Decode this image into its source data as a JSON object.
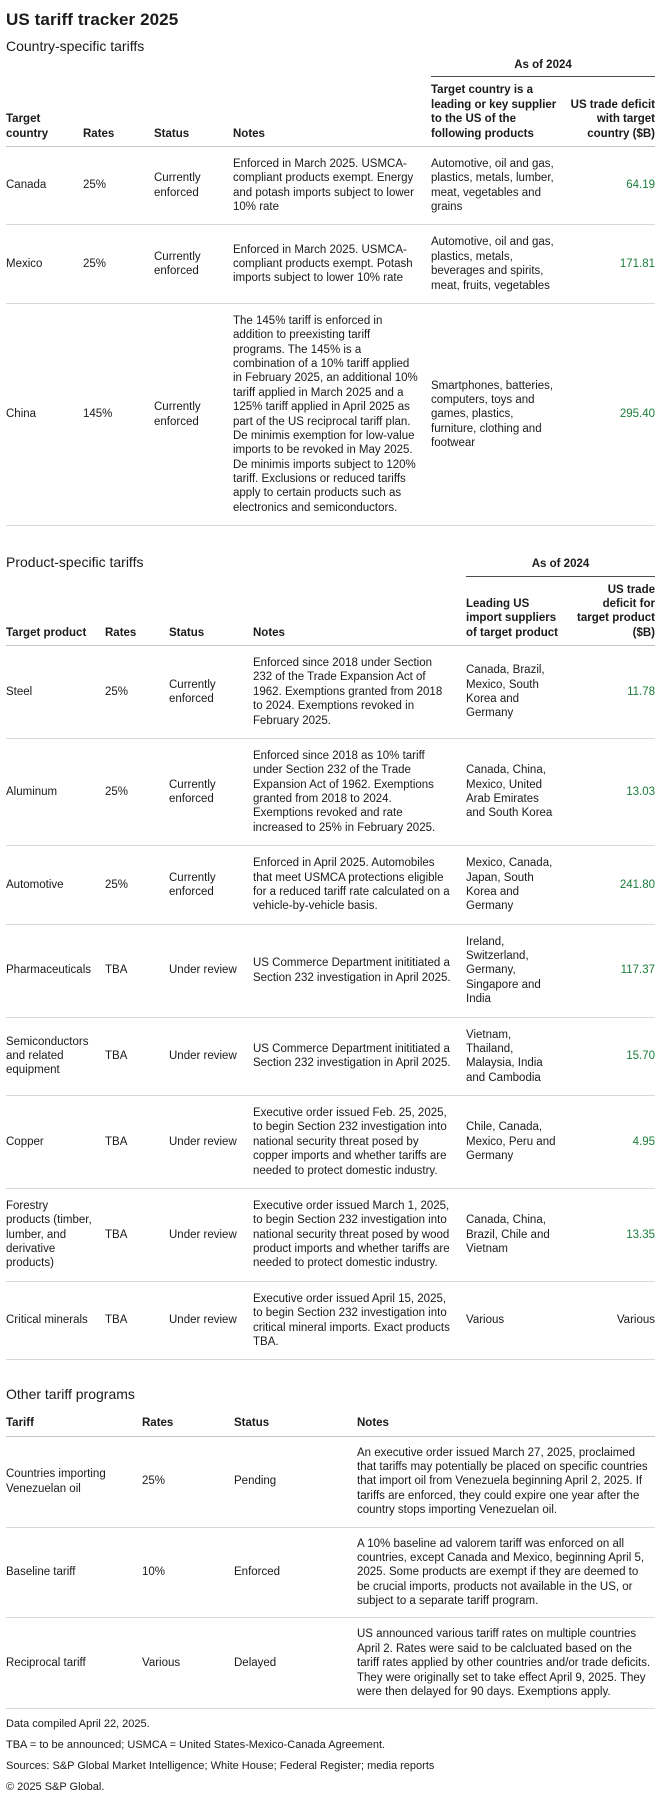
{
  "page": {
    "title": "US tariff tracker 2025"
  },
  "colors": {
    "positive_value_green": "#1a7d3a",
    "rule_light": "#d9d9d9",
    "rule_dark": "#4d4d4d",
    "text": "#1a1a1a"
  },
  "sections": [
    {
      "heading": "Country-specific tariffs",
      "as_of": "As of 2024",
      "columns": [
        "Target country",
        "Rates",
        "Status",
        "Notes",
        "Target country is a leading or key supplier to the US of the following products",
        "US trade deficit with target country ($B)"
      ],
      "fields": [
        "target",
        "rates",
        "status",
        "notes",
        "supplier",
        "deficit"
      ],
      "rows": [
        {
          "target": "Canada",
          "rates": "25%",
          "status": "Currently enforced",
          "notes": "Enforced in March 2025. USMCA-compliant products exempt. Energy and potash imports subject to lower 10% rate",
          "supplier": "Automotive, oil and gas, plastics, metals, lumber, meat, vegetables and grains",
          "deficit": "64.19"
        },
        {
          "target": "Mexico",
          "rates": "25%",
          "status": "Currently enforced",
          "notes": "Enforced in March 2025. USMCA-compliant products exempt. Potash imports subject to lower 10% rate",
          "supplier": "Automotive, oil and gas, plastics, metals, beverages and spirits, meat, fruits, vegetables",
          "deficit": "171.81"
        },
        {
          "target": "China",
          "rates": "145%",
          "status": "Currently enforced",
          "notes": "The 145% tariff is enforced in addition to preexisting tariff programs. The 145% is a combination of a 10% tariff applied in February 2025, an additional 10% tariff applied in March 2025 and a 125% tariff applied in April 2025 as part of the US reciprocal tariff plan. De minimis exemption for low-value imports to be revoked in May 2025. De minimis imports subject to 120% tariff. Exclusions or reduced tariffs apply to certain products such as electronics and semiconductors.",
          "supplier": "Smartphones, batteries, computers, toys and games, plastics, furniture, clothing and footwear",
          "deficit": "295.40"
        }
      ]
    },
    {
      "heading": "Product-specific tariffs",
      "as_of": "As of 2024",
      "columns": [
        "Target product",
        "Rates",
        "Status",
        "Notes",
        "Leading US import suppliers of target product",
        "US trade deficit for target product ($B)"
      ],
      "fields": [
        "target",
        "rates",
        "status",
        "notes",
        "supplier",
        "deficit"
      ],
      "rows": [
        {
          "target": "Steel",
          "rates": "25%",
          "status": "Currently enforced",
          "notes": "Enforced since 2018 under Section 232 of the Trade Expansion Act of 1962. Exemptions granted from 2018 to 2024. Exemptions revoked in February 2025.",
          "supplier": "Canada, Brazil, Mexico, South Korea and Germany",
          "deficit": "11.78"
        },
        {
          "target": "Aluminum",
          "rates": "25%",
          "status": "Currently enforced",
          "notes": "Enforced since 2018 as 10% tariff under Section 232 of the Trade Expansion Act of 1962. Exemptions granted from 2018 to 2024. Exemptions revoked and rate increased to 25% in February 2025.",
          "supplier": "Canada, China, Mexico, United Arab Emirates and South Korea",
          "deficit": "13.03"
        },
        {
          "target": "Automotive",
          "rates": "25%",
          "status": "Currently enforced",
          "notes": "Enforced in April 2025. Automobiles that meet USMCA protections eligible for a reduced tariff rate calculated on a vehicle-by-vehicle basis.",
          "supplier": "Mexico, Canada, Japan, South Korea and Germany",
          "deficit": "241.80"
        },
        {
          "target": "Pharmaceuticals",
          "rates": "TBA",
          "status": "Under review",
          "notes": "US Commerce Department inititiated a Section 232 investigation in April 2025.",
          "supplier": "Ireland, Switzerland, Germany, Singapore and India",
          "deficit": "117.37"
        },
        {
          "target": "Semiconductors and related equipment",
          "rates": "TBA",
          "status": "Under review",
          "notes": "US Commerce Department inititiated a Section 232 investigation in April 2025.",
          "supplier": "Vietnam, Thailand, Malaysia, India and Cambodia",
          "deficit": "15.70"
        },
        {
          "target": "Copper",
          "rates": "TBA",
          "status": "Under review",
          "notes": "Executive order issued Feb. 25, 2025, to begin Section 232 investigation into national security threat posed by copper imports and whether tariffs are needed to protect domestic industry.",
          "supplier": "Chile, Canada, Mexico, Peru and Germany",
          "deficit": "4.95"
        },
        {
          "target": "Forestry products (timber, lumber, and derivative products)",
          "rates": "TBA",
          "status": "Under review",
          "notes": "Executive order issued March 1, 2025, to begin Section 232 investigation into national security threat posed by wood product imports and whether tariffs are needed to protect domestic industry.",
          "supplier": "Canada, China, Brazil, Chile and Vietnam",
          "deficit": "13.35"
        },
        {
          "target": "Critical minerals",
          "rates": "TBA",
          "status": "Under review",
          "notes": "Executive order issued April 15, 2025, to begin Section 232 investigation into critical mineral imports. Exact products TBA.",
          "supplier": "Various",
          "deficit": "Various"
        }
      ]
    },
    {
      "heading": "Other tariff programs",
      "as_of": null,
      "columns": [
        "Tariff",
        "Rates",
        "Status",
        "Notes"
      ],
      "fields": [
        "target",
        "rates",
        "status",
        "notes"
      ],
      "rows": [
        {
          "target": "Countries importing Venezuelan oil",
          "rates": "25%",
          "status": "Pending",
          "notes": "An executive order issued March 27, 2025, proclaimed that tariffs may potentially be placed on specific countries that import oil from Venezuela beginning April 2, 2025. If tariffs are enforced, they could expire one year after the country stops importing Venezuelan oil."
        },
        {
          "target": "Baseline tariff",
          "rates": "10%",
          "status": "Enforced",
          "notes": "A 10% baseline ad valorem tariff was enforced on all countries, except Canada and Mexico, beginning April 5, 2025. Some products are exempt if they are deemed to be crucial imports, products not available in the US, or subject to a separate tariff program."
        },
        {
          "target": "Reciprocal tariff",
          "rates": "Various",
          "status": "Delayed",
          "notes": "US announced various tariff rates on multiple countries April 2. Rates were said to be calcluated based on the tariff rates applied by other countries and/or trade deficits. They were originally set to take effect April 9, 2025. They were then delayed for 90 days. Exemptions apply."
        }
      ]
    }
  ],
  "footer": {
    "lines": [
      "Data compiled April 22, 2025.",
      "TBA = to be announced; USMCA = United States-Mexico-Canada Agreement.",
      "Sources: S&P Global Market Intelligence; White House; Federal Register; media reports",
      "© 2025 S&P Global."
    ]
  }
}
